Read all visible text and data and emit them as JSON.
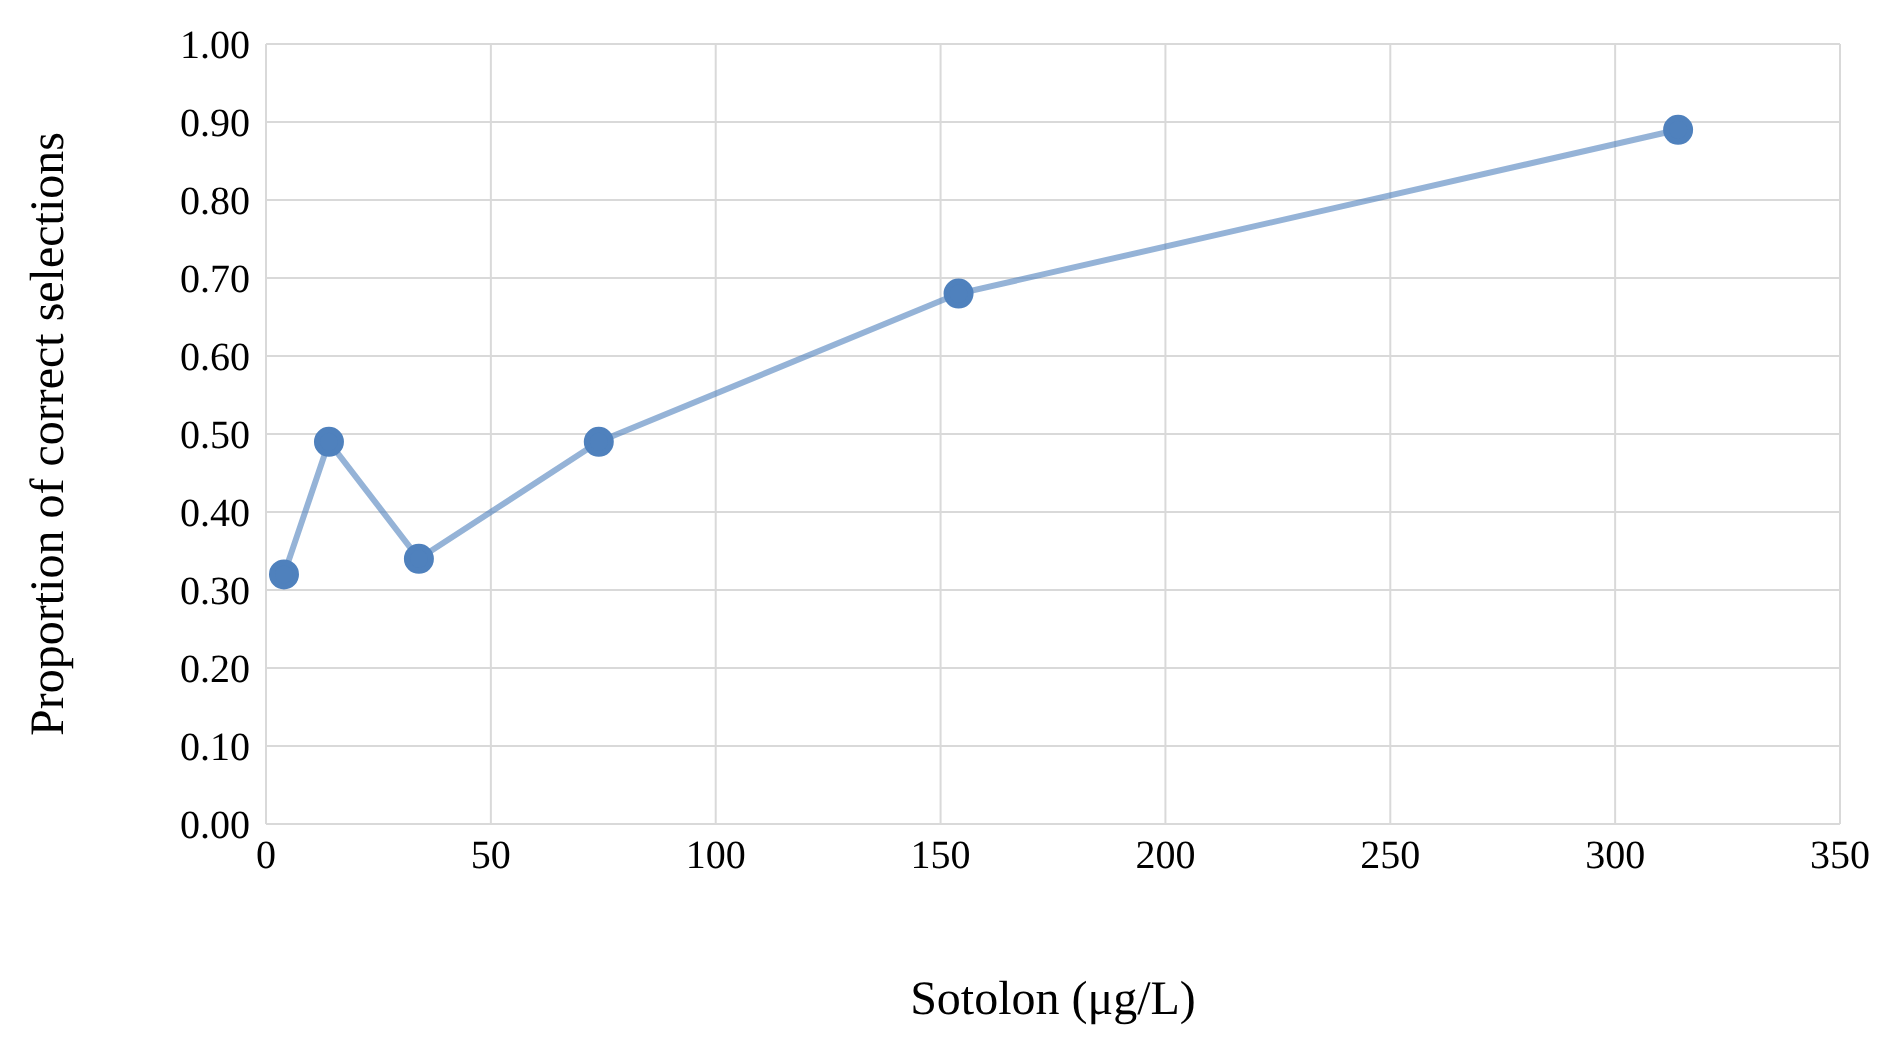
{
  "chart_data": {
    "type": "line",
    "xlabel": "Sotolon (μg/L)",
    "ylabel": "Proportion of correct selections",
    "x": [
      4,
      14,
      34,
      74,
      154,
      314
    ],
    "series": [
      {
        "color": "#4f81bd",
        "values": [
          0.32,
          0.49,
          0.34,
          0.49,
          0.68,
          0.89
        ]
      }
    ],
    "xlim": [
      0,
      350
    ],
    "xticks": [
      0,
      50,
      100,
      150,
      200,
      250,
      300,
      350
    ],
    "ylim": [
      0,
      1
    ],
    "yticks": [
      {
        "value": 0,
        "label": "0.00"
      },
      {
        "value": 0.1,
        "label": "0.10"
      },
      {
        "value": 0.2,
        "label": "0.20"
      },
      {
        "value": 0.3,
        "label": "0.30"
      },
      {
        "value": 0.4,
        "label": "0.40"
      },
      {
        "value": 0.5,
        "label": "0.50"
      },
      {
        "value": 0.6,
        "label": "0.60"
      },
      {
        "value": 0.7,
        "label": "0.70"
      },
      {
        "value": 0.8,
        "label": "0.80"
      },
      {
        "value": 0.9,
        "label": "0.90"
      },
      {
        "value": 1,
        "label": "1.00"
      }
    ],
    "grid": true,
    "marker": "circle",
    "line_style": "solid",
    "legend": false
  }
}
